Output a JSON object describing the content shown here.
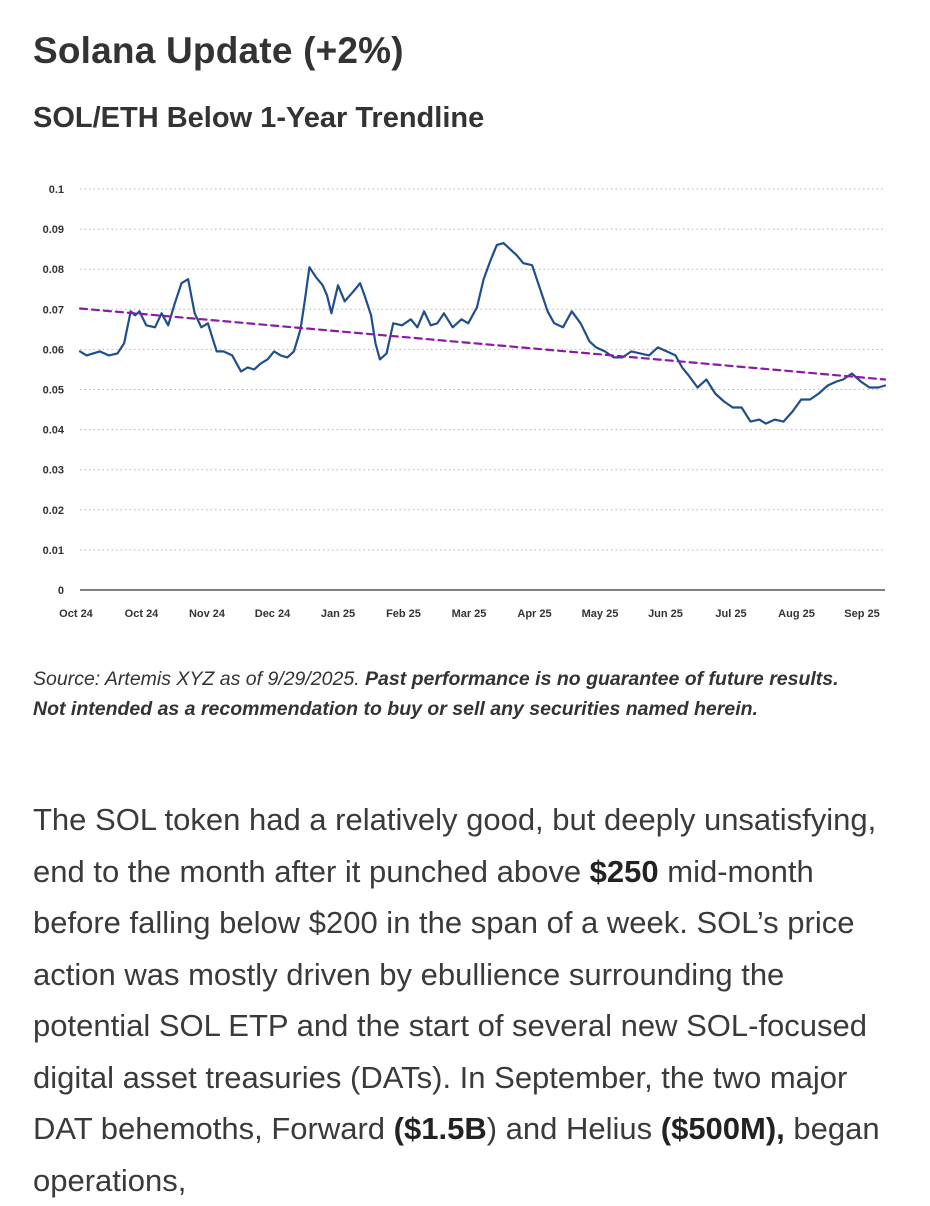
{
  "header": {
    "title": "Solana Update (+2%)",
    "subtitle": "SOL/ETH Below 1-Year Trendline"
  },
  "chart_data": {
    "type": "line",
    "title": "SOL/ETH Below 1-Year Trendline",
    "xlabel": "",
    "ylabel": "",
    "ylim": [
      0,
      0.1
    ],
    "yticks": [
      "0",
      "0.01",
      "0.02",
      "0.03",
      "0.04",
      "0.05",
      "0.06",
      "0.07",
      "0.08",
      "0.09",
      "0.1"
    ],
    "xtick_labels": [
      "Oct 24",
      "Oct 24",
      "Nov 24",
      "Dec 24",
      "Jan 25",
      "Feb 25",
      "Mar 25",
      "Apr 25",
      "May 25",
      "Jun 25",
      "Jul 25",
      "Aug 25",
      "Sep 25"
    ],
    "grid": "horizontal dotted",
    "legend": "none",
    "x_start": "2024-09-29",
    "x_end": "2025-09-29",
    "series": [
      {
        "style": "solid",
        "color": "#1f4e8c",
        "x": [
          "2024-09-29",
          "2024-10-02",
          "2024-10-05",
          "2024-10-08",
          "2024-10-12",
          "2024-10-16",
          "2024-10-19",
          "2024-10-22",
          "2024-10-24",
          "2024-10-26",
          "2024-10-29",
          "2024-11-02",
          "2024-11-05",
          "2024-11-08",
          "2024-11-11",
          "2024-11-14",
          "2024-11-17",
          "2024-11-20",
          "2024-11-23",
          "2024-11-26",
          "2024-11-28",
          "2024-11-30",
          "2024-12-03",
          "2024-12-07",
          "2024-12-11",
          "2024-12-14",
          "2024-12-17",
          "2024-12-20",
          "2024-12-23",
          "2024-12-26",
          "2024-12-29",
          "2025-01-01",
          "2025-01-04",
          "2025-01-07",
          "2025-01-09",
          "2025-01-11",
          "2025-01-14",
          "2025-01-17",
          "2025-01-19",
          "2025-01-21",
          "2025-01-24",
          "2025-01-27",
          "2025-01-31",
          "2025-02-03",
          "2025-02-05",
          "2025-02-08",
          "2025-02-10",
          "2025-02-12",
          "2025-02-15",
          "2025-02-18",
          "2025-02-22",
          "2025-02-26",
          "2025-03-01",
          "2025-03-04",
          "2025-03-07",
          "2025-03-10",
          "2025-03-13",
          "2025-03-17",
          "2025-03-21",
          "2025-03-24",
          "2025-03-28",
          "2025-03-31",
          "2025-04-03",
          "2025-04-06",
          "2025-04-09",
          "2025-04-12",
          "2025-04-15",
          "2025-04-18",
          "2025-04-22",
          "2025-04-26",
          "2025-04-29",
          "2025-05-02",
          "2025-05-06",
          "2025-05-10",
          "2025-05-14",
          "2025-05-18",
          "2025-05-21",
          "2025-05-25",
          "2025-05-29",
          "2025-06-02",
          "2025-06-06",
          "2025-06-10",
          "2025-06-14",
          "2025-06-18",
          "2025-06-22",
          "2025-06-26",
          "2025-06-29",
          "2025-07-02",
          "2025-07-06",
          "2025-07-10",
          "2025-07-14",
          "2025-07-18",
          "2025-07-22",
          "2025-07-26",
          "2025-07-30",
          "2025-08-03",
          "2025-08-06",
          "2025-08-10",
          "2025-08-14",
          "2025-08-18",
          "2025-08-22",
          "2025-08-26",
          "2025-08-30",
          "2025-09-03",
          "2025-09-07",
          "2025-09-10",
          "2025-09-14",
          "2025-09-18",
          "2025-09-22",
          "2025-09-26",
          "2025-09-29"
        ],
        "y": [
          0.0595,
          0.0585,
          0.059,
          0.0595,
          0.0585,
          0.059,
          0.0615,
          0.0695,
          0.0685,
          0.0695,
          0.066,
          0.0655,
          0.069,
          0.066,
          0.0715,
          0.0765,
          0.0775,
          0.069,
          0.0655,
          0.0665,
          0.063,
          0.0595,
          0.0595,
          0.0585,
          0.0545,
          0.0555,
          0.055,
          0.0565,
          0.0575,
          0.0595,
          0.0585,
          0.058,
          0.0595,
          0.065,
          0.0725,
          0.0805,
          0.078,
          0.076,
          0.0735,
          0.069,
          0.076,
          0.072,
          0.0745,
          0.0765,
          0.0735,
          0.0685,
          0.0615,
          0.0575,
          0.059,
          0.0665,
          0.066,
          0.0675,
          0.0655,
          0.0695,
          0.066,
          0.0665,
          0.069,
          0.0655,
          0.0675,
          0.0665,
          0.0705,
          0.0775,
          0.082,
          0.086,
          0.0865,
          0.085,
          0.0835,
          0.0815,
          0.081,
          0.0745,
          0.0695,
          0.0665,
          0.0655,
          0.0695,
          0.0665,
          0.062,
          0.0605,
          0.0595,
          0.058,
          0.058,
          0.0595,
          0.059,
          0.0585,
          0.0605,
          0.0595,
          0.0585,
          0.0555,
          0.0535,
          0.0505,
          0.0525,
          0.049,
          0.047,
          0.0455,
          0.0455,
          0.042,
          0.0425,
          0.0415,
          0.0425,
          0.042,
          0.0445,
          0.0475,
          0.0475,
          0.049,
          0.051,
          0.052,
          0.0525,
          0.054,
          0.052,
          0.0505,
          0.0505,
          0.051
        ]
      },
      {
        "style": "dashed",
        "color": "#8b1aa8",
        "x": [
          "2024-09-29",
          "2025-09-29"
        ],
        "y": [
          0.0702,
          0.0525
        ]
      }
    ]
  },
  "source": {
    "normal": "Source: Artemis XYZ as of 9/29/2025. ",
    "bold": "Past performance is no guarantee of future results. Not intended as a recommendation to buy or sell any securities named herein."
  },
  "paragraph": {
    "p1": "The SOL token had a relatively good, but deeply unsatisfying, end to the month after it punched above ",
    "b1": "$250",
    "p2": " mid-month before falling below $200 in the span of a week. SOL’s price action was mostly driven by ebullience surrounding the potential SOL ETP and the start of several new SOL-focused digital asset treasuries (DATs). In September, the two major DAT behemoths, Forward ",
    "b2": "($1.5B",
    "p3": ") and Helius ",
    "b3": "($500M),",
    "p4": " began operations,"
  }
}
